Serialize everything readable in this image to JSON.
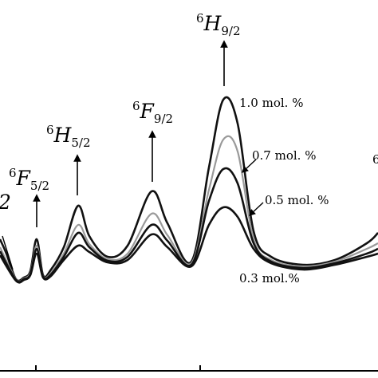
{
  "chart_data": {
    "type": "line",
    "title": "",
    "xlabel": "",
    "ylabel": "",
    "grid": false,
    "legend": "inline labels",
    "x_ticks_visible_count": 2,
    "series": [
      {
        "name": "1.0 mol. %",
        "color": "#111111",
        "points": [
          [
            0,
            300
          ],
          [
            8,
            318
          ],
          [
            20,
            350
          ],
          [
            30,
            348
          ],
          [
            38,
            340
          ],
          [
            46,
            300
          ],
          [
            54,
            345
          ],
          [
            64,
            338
          ],
          [
            80,
            310
          ],
          [
            98,
            258
          ],
          [
            112,
            296
          ],
          [
            135,
            322
          ],
          [
            160,
            308
          ],
          [
            190,
            240
          ],
          [
            210,
            280
          ],
          [
            240,
            328
          ],
          [
            262,
            210
          ],
          [
            280,
            125
          ],
          [
            298,
            155
          ],
          [
            318,
            290
          ],
          [
            340,
            322
          ],
          [
            380,
            332
          ],
          [
            420,
            326
          ],
          [
            460,
            305
          ],
          [
            474,
            292
          ]
        ]
      },
      {
        "name": "0.7 mol. %",
        "color": "#9a9a9a",
        "points": [
          [
            0,
            310
          ],
          [
            20,
            350
          ],
          [
            30,
            349
          ],
          [
            38,
            342
          ],
          [
            46,
            308
          ],
          [
            54,
            346
          ],
          [
            64,
            342
          ],
          [
            80,
            318
          ],
          [
            98,
            282
          ],
          [
            112,
            306
          ],
          [
            135,
            325
          ],
          [
            160,
            318
          ],
          [
            190,
            268
          ],
          [
            210,
            295
          ],
          [
            240,
            330
          ],
          [
            262,
            238
          ],
          [
            280,
            175
          ],
          [
            298,
            190
          ],
          [
            318,
            300
          ],
          [
            340,
            326
          ],
          [
            380,
            334
          ],
          [
            420,
            328
          ],
          [
            460,
            312
          ],
          [
            474,
            305
          ]
        ]
      },
      {
        "name": "0.5 mol. %",
        "color": "#111111",
        "points": [
          [
            0,
            315
          ],
          [
            20,
            351
          ],
          [
            30,
            350
          ],
          [
            38,
            344
          ],
          [
            46,
            312
          ],
          [
            54,
            347
          ],
          [
            64,
            344
          ],
          [
            80,
            322
          ],
          [
            98,
            292
          ],
          [
            112,
            310
          ],
          [
            135,
            327
          ],
          [
            160,
            322
          ],
          [
            190,
            282
          ],
          [
            210,
            302
          ],
          [
            240,
            332
          ],
          [
            262,
            252
          ],
          [
            280,
            212
          ],
          [
            298,
            230
          ],
          [
            318,
            305
          ],
          [
            340,
            328
          ],
          [
            380,
            336
          ],
          [
            420,
            330
          ],
          [
            460,
            318
          ],
          [
            474,
            312
          ]
        ]
      },
      {
        "name": "0.3 mol.%",
        "color": "#111111",
        "points": [
          [
            0,
            320
          ],
          [
            20,
            352
          ],
          [
            30,
            351
          ],
          [
            38,
            345
          ],
          [
            46,
            318
          ],
          [
            54,
            348
          ],
          [
            64,
            346
          ],
          [
            80,
            326
          ],
          [
            98,
            308
          ],
          [
            112,
            316
          ],
          [
            135,
            329
          ],
          [
            160,
            326
          ],
          [
            190,
            294
          ],
          [
            210,
            310
          ],
          [
            240,
            334
          ],
          [
            262,
            282
          ],
          [
            280,
            260
          ],
          [
            298,
            272
          ],
          [
            318,
            312
          ],
          [
            340,
            330
          ],
          [
            380,
            338
          ],
          [
            420,
            332
          ],
          [
            460,
            322
          ],
          [
            474,
            318
          ]
        ]
      }
    ],
    "peak_labels": [
      {
        "pre": "6",
        "main": "F",
        "sub": "5/2"
      },
      {
        "pre": "6",
        "main": "H",
        "sub": "5/2"
      },
      {
        "pre": "6",
        "main": "F",
        "sub": "9/2"
      },
      {
        "pre": "6",
        "main": "H",
        "sub": "9/2"
      }
    ],
    "edge_texts": {
      "left": "2",
      "right": "6"
    }
  }
}
